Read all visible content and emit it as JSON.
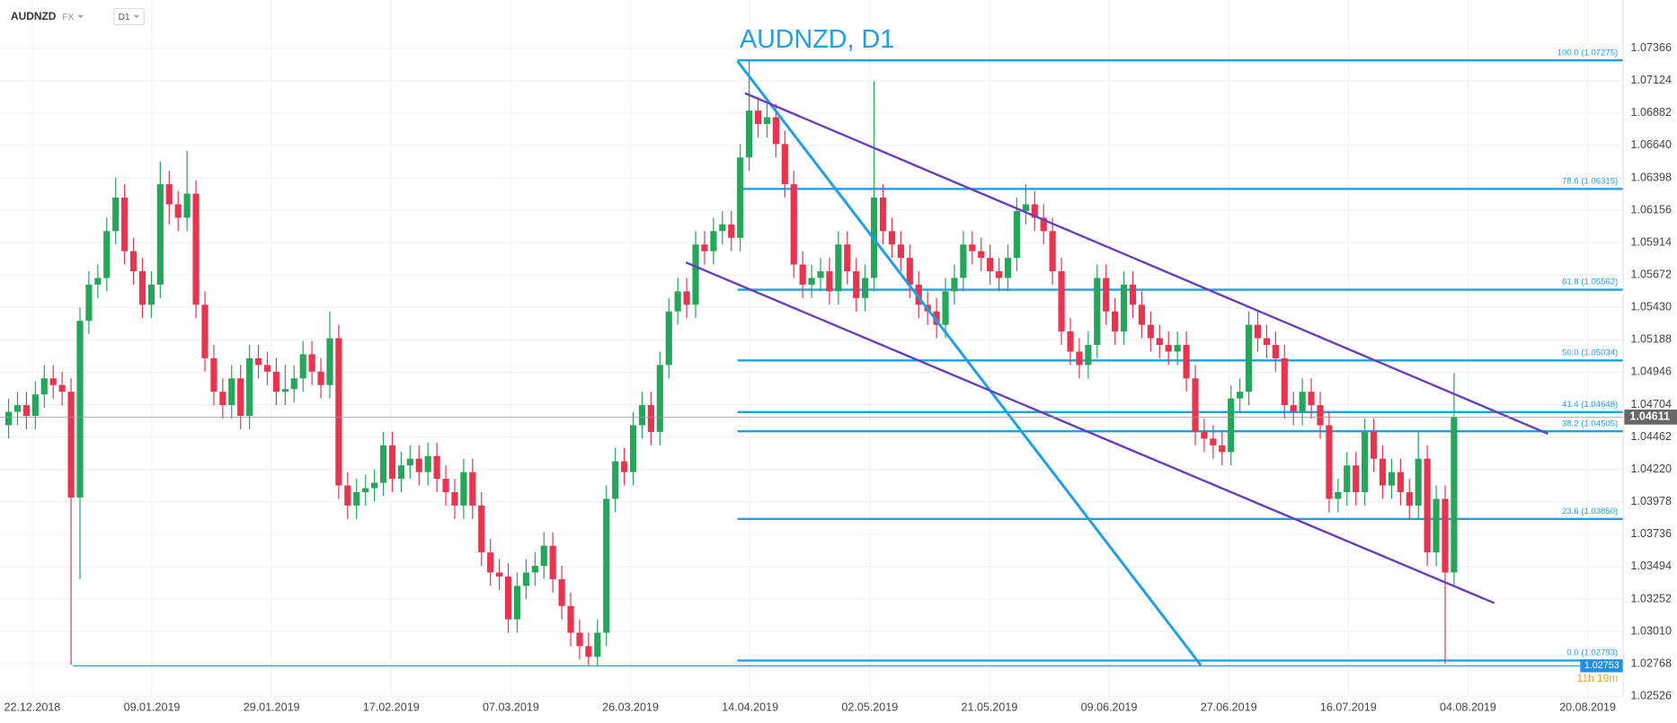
{
  "chart_data": {
    "type": "candlestick",
    "title": "AUDNZD, D1",
    "symbol": "AUDNZD",
    "market": "FX",
    "timeframe": "D1",
    "ylim": [
      1.02526,
      1.07726
    ],
    "yticks": [
      1.07366,
      1.07124,
      1.06882,
      {
        "value": 1.0664,
        "label": "1.06640"
      },
      1.06398,
      1.06156,
      1.05914,
      1.05672,
      {
        "value": 1.0543,
        "label": "1.05430"
      },
      1.05188,
      1.04946,
      1.04704,
      1.04462,
      {
        "value": 1.0422,
        "label": "1.04220"
      },
      1.03978,
      1.03736,
      1.03494,
      1.03252,
      {
        "value": 1.0301,
        "label": "1.03010"
      },
      1.02768,
      1.02526
    ],
    "xtick_labels": [
      "22.12.2018",
      "09.01.2019",
      "29.01.2019",
      "17.02.2019",
      "07.03.2019",
      "26.03.2019",
      "14.04.2019",
      "02.05.2019",
      "21.05.2019",
      "09.06.2019",
      "27.06.2019",
      "16.07.2019",
      "04.08.2019",
      "20.08.2019"
    ],
    "up_color": "#26a65b",
    "down_color": "#e8344e",
    "last_price": 1.04611,
    "low_marker": 1.02753,
    "countdown": "11h 19m",
    "fib_levels": [
      {
        "price": 1.07275,
        "label": "100.0 (1.07275)"
      },
      {
        "price": 1.06315,
        "label": "78.6 (1.06315)"
      },
      {
        "price": 1.05562,
        "label": "61.8 (1.05562)"
      },
      {
        "price": 1.05034,
        "label": "50.0 (1.05034)"
      },
      {
        "price": 1.04648,
        "label": "41.4 (1.04648)"
      },
      {
        "price": 1.04505,
        "label": "38.2 (1.04505)"
      },
      {
        "price": 1.0385,
        "label": "23.6 (1.03850)"
      },
      {
        "price": 1.02793,
        "label": "0.0 (1.02793)"
      }
    ],
    "candles": [
      [
        1.0455,
        1.0475,
        1.0445,
        1.0465
      ],
      [
        1.0465,
        1.048,
        1.0455,
        1.047
      ],
      [
        1.047,
        1.048,
        1.0452,
        1.0462
      ],
      [
        1.0462,
        1.0488,
        1.0452,
        1.0478
      ],
      [
        1.0478,
        1.05,
        1.0468,
        1.049
      ],
      [
        1.049,
        1.05,
        1.0475,
        1.0485
      ],
      [
        1.0485,
        1.0495,
        1.047,
        1.048
      ],
      [
        1.048,
        1.049,
        1.0276,
        1.0401
      ],
      [
        1.0401,
        1.0543,
        1.034,
        1.0533
      ],
      [
        1.0533,
        1.057,
        1.0523,
        1.056
      ],
      [
        1.056,
        1.0575,
        1.055,
        1.0565
      ],
      [
        1.0565,
        1.061,
        1.0555,
        1.06
      ],
      [
        1.06,
        1.064,
        1.059,
        1.0625
      ],
      [
        1.0625,
        1.0635,
        1.0575,
        1.0585
      ],
      [
        1.0585,
        1.0595,
        1.056,
        1.057
      ],
      [
        1.057,
        1.058,
        1.0535,
        1.0545
      ],
      [
        1.0545,
        1.057,
        1.0535,
        1.056
      ],
      [
        1.056,
        1.0652,
        1.055,
        1.0635
      ],
      [
        1.0635,
        1.0645,
        1.0605,
        1.062
      ],
      [
        1.062,
        1.063,
        1.06,
        1.061
      ],
      [
        1.061,
        1.066,
        1.06,
        1.0628
      ],
      [
        1.0628,
        1.0638,
        1.0535,
        1.0545
      ],
      [
        1.0545,
        1.0555,
        1.0495,
        1.0505
      ],
      [
        1.0505,
        1.0515,
        1.047,
        1.048
      ],
      [
        1.048,
        1.049,
        1.046,
        1.047
      ],
      [
        1.047,
        1.05,
        1.046,
        1.049
      ],
      [
        1.049,
        1.05,
        1.0452,
        1.0462
      ],
      [
        1.0462,
        1.0515,
        1.0452,
        1.0505
      ],
      [
        1.0505,
        1.0515,
        1.049,
        1.05
      ],
      [
        1.05,
        1.051,
        1.0485,
        1.0495
      ],
      [
        1.0495,
        1.0505,
        1.047,
        1.048
      ],
      [
        1.048,
        1.05,
        1.047,
        1.0482
      ],
      [
        1.0482,
        1.05,
        1.0472,
        1.049
      ],
      [
        1.049,
        1.0518,
        1.048,
        1.0508
      ],
      [
        1.0508,
        1.0518,
        1.0485,
        1.0495
      ],
      [
        1.0495,
        1.0505,
        1.0475,
        1.0485
      ],
      [
        1.0485,
        1.054,
        1.0475,
        1.052
      ],
      [
        1.052,
        1.053,
        1.04,
        1.041
      ],
      [
        1.041,
        1.042,
        1.0385,
        1.0395
      ],
      [
        1.0395,
        1.0415,
        1.0385,
        1.0405
      ],
      [
        1.0405,
        1.0418,
        1.0395,
        1.0408
      ],
      [
        1.0408,
        1.0422,
        1.0398,
        1.0412
      ],
      [
        1.0412,
        1.045,
        1.0402,
        1.044
      ],
      [
        1.044,
        1.045,
        1.0405,
        1.0415
      ],
      [
        1.0415,
        1.0435,
        1.0405,
        1.0425
      ],
      [
        1.0425,
        1.044,
        1.0415,
        1.043
      ],
      [
        1.043,
        1.044,
        1.041,
        1.042
      ],
      [
        1.042,
        1.0442,
        1.041,
        1.0432
      ],
      [
        1.0432,
        1.0442,
        1.0405,
        1.0415
      ],
      [
        1.0415,
        1.0425,
        1.0395,
        1.0405
      ],
      [
        1.0405,
        1.0415,
        1.0385,
        1.0395
      ],
      [
        1.0395,
        1.043,
        1.0385,
        1.042
      ],
      [
        1.042,
        1.043,
        1.0385,
        1.0395
      ],
      [
        1.0395,
        1.0405,
        1.035,
        1.036
      ],
      [
        1.036,
        1.037,
        1.0335,
        1.0345
      ],
      [
        1.0345,
        1.0355,
        1.0332,
        1.0342
      ],
      [
        1.0342,
        1.0352,
        1.03,
        1.031
      ],
      [
        1.031,
        1.0345,
        1.03,
        1.0335
      ],
      [
        1.0335,
        1.0355,
        1.0325,
        1.0345
      ],
      [
        1.0345,
        1.036,
        1.0335,
        1.035
      ],
      [
        1.035,
        1.0375,
        1.034,
        1.0365
      ],
      [
        1.0365,
        1.0375,
        1.033,
        1.034
      ],
      [
        1.034,
        1.035,
        1.031,
        1.032
      ],
      [
        1.032,
        1.033,
        1.029,
        1.03
      ],
      [
        1.03,
        1.031,
        1.028,
        1.029
      ],
      [
        1.029,
        1.03,
        1.0276,
        1.0282
      ],
      [
        1.0282,
        1.031,
        1.0275,
        1.03
      ],
      [
        1.03,
        1.041,
        1.029,
        1.04
      ],
      [
        1.04,
        1.0438,
        1.039,
        1.0428
      ],
      [
        1.0428,
        1.0438,
        1.041,
        1.042
      ],
      [
        1.042,
        1.0465,
        1.041,
        1.0455
      ],
      [
        1.0455,
        1.048,
        1.0445,
        1.047
      ],
      [
        1.047,
        1.048,
        1.044,
        1.045
      ],
      [
        1.045,
        1.051,
        1.044,
        1.05
      ],
      [
        1.05,
        1.055,
        1.049,
        1.054
      ],
      [
        1.054,
        1.0565,
        1.053,
        1.0555
      ],
      [
        1.0555,
        1.0565,
        1.0535,
        1.0545
      ],
      [
        1.0545,
        1.06,
        1.0535,
        1.059
      ],
      [
        1.059,
        1.06,
        1.0575,
        1.0585
      ],
      [
        1.0585,
        1.061,
        1.0575,
        1.06
      ],
      [
        1.06,
        1.0615,
        1.059,
        1.0605
      ],
      [
        1.0605,
        1.0615,
        1.0585,
        1.0595
      ],
      [
        1.0595,
        1.0665,
        1.0585,
        1.0655
      ],
      [
        1.0655,
        1.0728,
        1.0645,
        1.069
      ],
      [
        1.069,
        1.07,
        1.067,
        1.068
      ],
      [
        1.068,
        1.0695,
        1.067,
        1.0685
      ],
      [
        1.0685,
        1.0695,
        1.0655,
        1.0665
      ],
      [
        1.0665,
        1.0675,
        1.0625,
        1.0635
      ],
      [
        1.0635,
        1.0645,
        1.0565,
        1.0575
      ],
      [
        1.0575,
        1.0585,
        1.055,
        1.056
      ],
      [
        1.056,
        1.0575,
        1.055,
        1.0565
      ],
      [
        1.0565,
        1.058,
        1.0555,
        1.057
      ],
      [
        1.057,
        1.058,
        1.0545,
        1.0555
      ],
      [
        1.0555,
        1.06,
        1.0545,
        1.059
      ],
      [
        1.059,
        1.06,
        1.056,
        1.057
      ],
      [
        1.057,
        1.058,
        1.054,
        1.055
      ],
      [
        1.055,
        1.0575,
        1.054,
        1.0565
      ],
      [
        1.0565,
        1.0712,
        1.0555,
        1.0625
      ],
      [
        1.0625,
        1.0635,
        1.059,
        1.06
      ],
      [
        1.06,
        1.061,
        1.058,
        1.059
      ],
      [
        1.059,
        1.06,
        1.057,
        1.058
      ],
      [
        1.058,
        1.059,
        1.055,
        1.056
      ],
      [
        1.056,
        1.057,
        1.0535,
        1.0545
      ],
      [
        1.0545,
        1.0555,
        1.053,
        1.054
      ],
      [
        1.054,
        1.055,
        1.052,
        1.053
      ],
      [
        1.053,
        1.0565,
        1.052,
        1.0555
      ],
      [
        1.0555,
        1.0575,
        1.0545,
        1.0565
      ],
      [
        1.0565,
        1.06,
        1.0555,
        1.059
      ],
      [
        1.059,
        1.06,
        1.0575,
        1.0585
      ],
      [
        1.0585,
        1.0595,
        1.057,
        1.058
      ],
      [
        1.058,
        1.059,
        1.056,
        1.057
      ],
      [
        1.057,
        1.058,
        1.0555,
        1.0565
      ],
      [
        1.0565,
        1.059,
        1.0555,
        1.058
      ],
      [
        1.058,
        1.0625,
        1.057,
        1.0615
      ],
      [
        1.0615,
        1.0635,
        1.0605,
        1.062
      ],
      [
        1.062,
        1.063,
        1.06,
        1.061
      ],
      [
        1.061,
        1.062,
        1.059,
        1.06
      ],
      [
        1.06,
        1.061,
        1.056,
        1.057
      ],
      [
        1.057,
        1.058,
        1.0515,
        1.0525
      ],
      [
        1.0525,
        1.0535,
        1.05,
        1.051
      ],
      [
        1.051,
        1.052,
        1.049,
        1.05
      ],
      [
        1.05,
        1.0525,
        1.049,
        1.0515
      ],
      [
        1.0515,
        1.0575,
        1.0505,
        1.0565
      ],
      [
        1.0565,
        1.0575,
        1.053,
        1.054
      ],
      [
        1.054,
        1.055,
        1.0515,
        1.0525
      ],
      [
        1.0525,
        1.057,
        1.0515,
        1.056
      ],
      [
        1.056,
        1.057,
        1.0535,
        1.0545
      ],
      [
        1.0545,
        1.0555,
        1.052,
        1.053
      ],
      [
        1.053,
        1.054,
        1.051,
        1.052
      ],
      [
        1.052,
        1.053,
        1.0505,
        1.0515
      ],
      [
        1.0515,
        1.0525,
        1.05,
        1.051
      ],
      [
        1.051,
        1.0525,
        1.05,
        1.0515
      ],
      [
        1.0515,
        1.0525,
        1.048,
        1.049
      ],
      [
        1.049,
        1.05,
        1.044,
        1.045
      ],
      [
        1.045,
        1.046,
        1.0435,
        1.0445
      ],
      [
        1.0445,
        1.0455,
        1.043,
        1.044
      ],
      [
        1.044,
        1.045,
        1.0425,
        1.0435
      ],
      [
        1.0435,
        1.0485,
        1.0425,
        1.0475
      ],
      [
        1.0475,
        1.049,
        1.0465,
        1.048
      ],
      [
        1.048,
        1.054,
        1.047,
        1.053
      ],
      [
        1.053,
        1.054,
        1.051,
        1.052
      ],
      [
        1.052,
        1.053,
        1.0505,
        1.0515
      ],
      [
        1.0515,
        1.0525,
        1.0495,
        1.0505
      ],
      [
        1.0505,
        1.0515,
        1.046,
        1.047
      ],
      [
        1.047,
        1.048,
        1.0455,
        1.0465
      ],
      [
        1.0465,
        1.049,
        1.0455,
        1.048
      ],
      [
        1.048,
        1.049,
        1.046,
        1.047
      ],
      [
        1.047,
        1.048,
        1.0445,
        1.0455
      ],
      [
        1.0455,
        1.0465,
        1.039,
        1.04
      ],
      [
        1.04,
        1.0415,
        1.039,
        1.0405
      ],
      [
        1.0405,
        1.0435,
        1.0395,
        1.0425
      ],
      [
        1.0425,
        1.0435,
        1.0395,
        1.0405
      ],
      [
        1.0405,
        1.046,
        1.0395,
        1.045
      ],
      [
        1.045,
        1.046,
        1.042,
        1.043
      ],
      [
        1.043,
        1.044,
        1.04,
        1.041
      ],
      [
        1.041,
        1.043,
        1.04,
        1.042
      ],
      [
        1.042,
        1.043,
        1.0395,
        1.0405
      ],
      [
        1.0405,
        1.0415,
        1.0385,
        1.0395
      ],
      [
        1.0395,
        1.045,
        1.0385,
        1.043
      ],
      [
        1.043,
        1.044,
        1.035,
        1.036
      ],
      [
        1.036,
        1.041,
        1.035,
        1.04
      ],
      [
        1.04,
        1.041,
        1.0277,
        1.0345
      ],
      [
        1.0345,
        1.0494,
        1.0335,
        1.0461
      ]
    ]
  }
}
